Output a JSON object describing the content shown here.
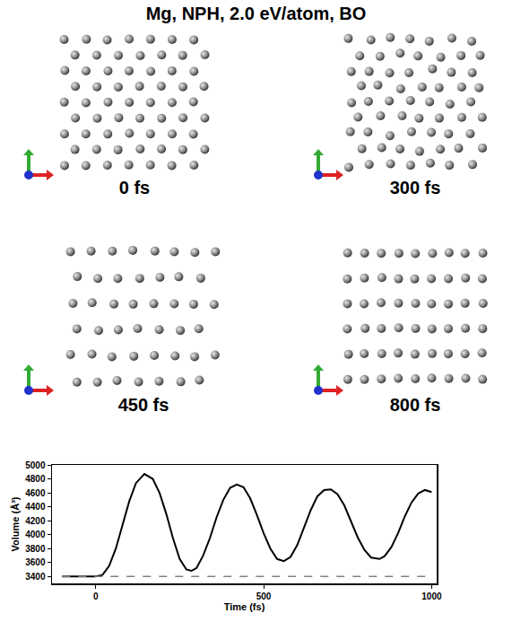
{
  "figure": {
    "title": "Mg, NPH, 2.0 eV/atom, BO",
    "snapshots": [
      {
        "label": "0 fs"
      },
      {
        "label": "300 fs"
      },
      {
        "label": "450 fs"
      },
      {
        "label": "800 fs"
      }
    ]
  },
  "chart_data": {
    "type": "line",
    "x_label": "Time (fs)",
    "y_label": "Volume (Å³)",
    "xlim": [
      -130,
      1015
    ],
    "ylim": [
      3300,
      5000
    ],
    "xticks": [
      0,
      500,
      1000
    ],
    "yticks": [
      3400,
      3600,
      3800,
      4000,
      4200,
      4400,
      4600,
      4800,
      5000
    ],
    "grid": false,
    "series": [
      {
        "color": "#000000",
        "line_style": "solid",
        "x": [
          -100,
          -50,
          0,
          20,
          40,
          60,
          80,
          100,
          120,
          145,
          170,
          190,
          210,
          230,
          250,
          270,
          285,
          300,
          320,
          340,
          360,
          380,
          400,
          420,
          440,
          460,
          480,
          500,
          520,
          540,
          560,
          580,
          600,
          620,
          640,
          660,
          680,
          700,
          720,
          740,
          760,
          780,
          800,
          820,
          845,
          860,
          880,
          900,
          920,
          940,
          960,
          980,
          1000
        ],
        "values": [
          3400,
          3400,
          3400,
          3420,
          3550,
          3800,
          4150,
          4480,
          4740,
          4870,
          4800,
          4600,
          4300,
          3950,
          3650,
          3500,
          3480,
          3520,
          3700,
          3950,
          4250,
          4500,
          4670,
          4720,
          4680,
          4520,
          4280,
          4020,
          3800,
          3650,
          3620,
          3680,
          3850,
          4100,
          4350,
          4550,
          4640,
          4650,
          4580,
          4420,
          4200,
          3960,
          3780,
          3670,
          3650,
          3690,
          3820,
          4020,
          4260,
          4460,
          4590,
          4640,
          4610
        ]
      },
      {
        "color": "#808080",
        "line_style": "dashed",
        "x": [
          -100,
          1000
        ],
        "values": [
          3400,
          3400
        ]
      }
    ]
  }
}
